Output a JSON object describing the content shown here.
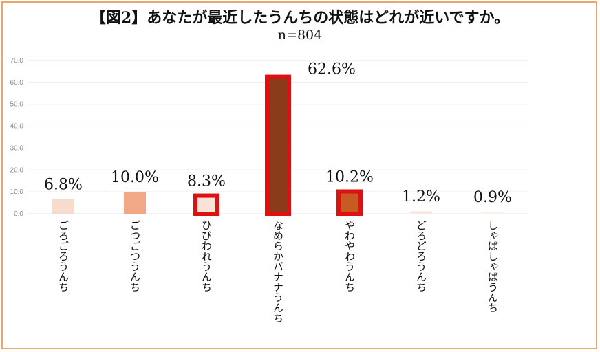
{
  "chart_data": {
    "type": "bar",
    "title": "【図2】あなたが最近したうんちの状態はどれが近いですか。",
    "subtitle": "n=804",
    "categories": [
      "ごろごろうんち",
      "ごつごつうんち",
      "ひびわれうんち",
      "なめらかバナナうんち",
      "やわやわうんち",
      "どろどろうんち",
      "しゃばしゃばうんち"
    ],
    "values": [
      6.8,
      10.0,
      8.3,
      62.6,
      10.2,
      1.2,
      0.9
    ],
    "data_labels": [
      "6.8%",
      "10.0%",
      "8.3%",
      "62.6%",
      "10.2%",
      "1.2%",
      "0.9%"
    ],
    "ylim": [
      0,
      70
    ],
    "yticks": [
      "0.0",
      "10.0",
      "20.0",
      "30.0",
      "40.0",
      "50.0",
      "60.0",
      "70.0"
    ],
    "grid": true,
    "bar_colors": [
      "#f7dccd",
      "#f0a887",
      "#fbe2d6",
      "#8b3a1a",
      "#c85a23",
      "#fbe7dc",
      "#fdf0e8"
    ],
    "highlight_border_color": "#e01010",
    "highlighted": [
      2,
      3,
      4
    ]
  }
}
